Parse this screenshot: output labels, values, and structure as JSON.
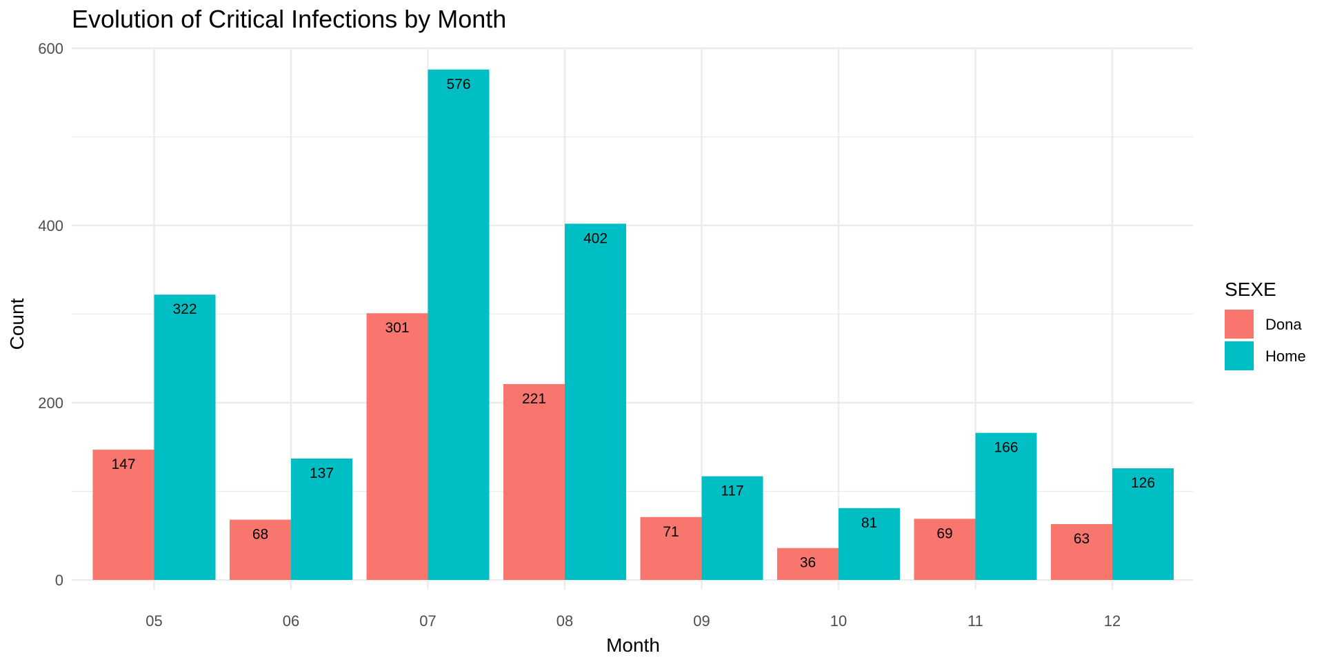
{
  "chart_data": {
    "type": "bar",
    "title": "Evolution of Critical Infections by Month",
    "xlabel": "Month",
    "ylabel": "Count",
    "categories": [
      "05",
      "06",
      "07",
      "08",
      "09",
      "10",
      "11",
      "12"
    ],
    "series": [
      {
        "name": "Dona",
        "color": "#F8766D",
        "values": [
          147,
          68,
          301,
          221,
          71,
          36,
          69,
          63
        ]
      },
      {
        "name": "Home",
        "color": "#00BFC4",
        "values": [
          322,
          137,
          576,
          402,
          117,
          81,
          166,
          126
        ]
      }
    ],
    "ylim": [
      0,
      600
    ],
    "yticks": [
      "0",
      "200",
      "400",
      "600"
    ],
    "grid": true,
    "legend": {
      "title": "SEXE",
      "placement": "right"
    }
  }
}
